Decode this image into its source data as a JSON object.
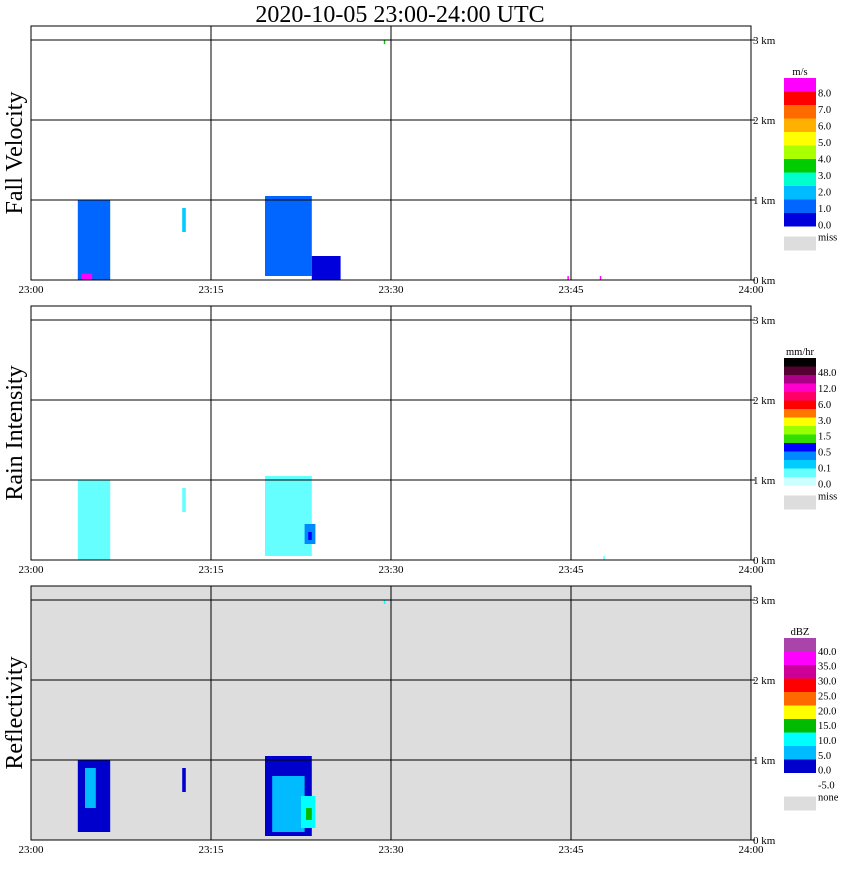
{
  "title": "2020-10-05   23:00-24:00 UTC",
  "colors": {
    "miss": "#dddddd",
    "axes": "#000000",
    "background": "#ffffff"
  },
  "time_ticks": [
    "23:00",
    "23:15",
    "23:30",
    "23:45",
    "24:00"
  ],
  "height_ticks": [
    "0 km",
    "1 km",
    "2 km",
    "3 km"
  ],
  "chart_data": [
    {
      "type": "heatmap",
      "title": "Fall Velocity",
      "x_range": [
        "23:00",
        "24:00"
      ],
      "y_range_km": [
        0,
        3.0
      ],
      "grid": true,
      "background": "#ffffff",
      "colorbar": {
        "unit": "m/s",
        "levels": [
          "8.0",
          "7.0",
          "6.0",
          "5.0",
          "4.0",
          "3.0",
          "2.0",
          "1.0",
          "0.0"
        ],
        "colors": [
          "#ff00ff",
          "#ff0000",
          "#ff6a00",
          "#ffb000",
          "#ffff00",
          "#aaff00",
          "#00cc00",
          "#00ffcc",
          "#00bbff",
          "#0066ff",
          "#0000dd"
        ],
        "miss_label": "miss"
      },
      "echoes": [
        {
          "t0": 23.065,
          "t1": 23.11,
          "h0": 0.0,
          "h1": 1.0,
          "c": "#0066ff"
        },
        {
          "t0": 23.07,
          "t1": 23.085,
          "h0": 0.0,
          "h1": 0.08,
          "c": "#ff00ff"
        },
        {
          "t0": 23.21,
          "t1": 23.215,
          "h0": 0.6,
          "h1": 0.9,
          "c": "#00ccff"
        },
        {
          "t0": 23.325,
          "t1": 23.39,
          "h0": 0.05,
          "h1": 1.05,
          "c": "#0066ff"
        },
        {
          "t0": 23.39,
          "t1": 23.43,
          "h0": 0.0,
          "h1": 0.3,
          "c": "#0000dd"
        },
        {
          "t0": 23.745,
          "t1": 23.747,
          "h0": 0.0,
          "h1": 0.05,
          "c": "#ff00ff"
        },
        {
          "t0": 23.79,
          "t1": 23.792,
          "h0": 0.0,
          "h1": 0.05,
          "c": "#ff00ff"
        },
        {
          "t0": 23.49,
          "t1": 23.492,
          "h0": 2.95,
          "h1": 3.0,
          "c": "#00cc00"
        }
      ]
    },
    {
      "type": "heatmap",
      "title": "Rain Intensity",
      "x_range": [
        "23:00",
        "24:00"
      ],
      "y_range_km": [
        0,
        3.0
      ],
      "grid": true,
      "background": "#ffffff",
      "colorbar": {
        "unit": "mm/hr",
        "levels": [
          "48.0",
          "12.0",
          "6.0",
          "3.0",
          "1.5",
          "0.5",
          "0.1",
          "0.0"
        ],
        "colors": [
          "#000000",
          "#550033",
          "#aa0088",
          "#ff00cc",
          "#ff0066",
          "#ff0000",
          "#ff7700",
          "#ffff00",
          "#99ff00",
          "#33dd00",
          "#0000ff",
          "#0088ff",
          "#00ccff",
          "#66ffff",
          "#ccffff"
        ],
        "miss_label": "miss"
      },
      "echoes": [
        {
          "t0": 23.065,
          "t1": 23.11,
          "h0": 0.0,
          "h1": 1.0,
          "c": "#66ffff"
        },
        {
          "t0": 23.21,
          "t1": 23.215,
          "h0": 0.6,
          "h1": 0.9,
          "c": "#66ffff"
        },
        {
          "t0": 23.325,
          "t1": 23.39,
          "h0": 0.05,
          "h1": 1.05,
          "c": "#66ffff"
        },
        {
          "t0": 23.38,
          "t1": 23.395,
          "h0": 0.2,
          "h1": 0.45,
          "c": "#0088ff"
        },
        {
          "t0": 23.385,
          "t1": 23.39,
          "h0": 0.25,
          "h1": 0.35,
          "c": "#0000ff"
        },
        {
          "t0": 23.795,
          "t1": 23.797,
          "h0": 0.0,
          "h1": 0.05,
          "c": "#66ffff"
        }
      ]
    },
    {
      "type": "heatmap",
      "title": "Reflectivity",
      "x_range": [
        "23:00",
        "24:00"
      ],
      "y_range_km": [
        0,
        3.0
      ],
      "grid": true,
      "background": "#dddddd",
      "colorbar": {
        "unit": "dBZ",
        "levels": [
          "40.0",
          "35.0",
          "30.0",
          "25.0",
          "20.0",
          "15.0",
          "10.0",
          "5.0",
          "0.0",
          "-5.0"
        ],
        "colors": [
          "#aa44aa",
          "#ff00ff",
          "#cc0099",
          "#ff0000",
          "#ff6a00",
          "#ffff00",
          "#00bb00",
          "#00ffff",
          "#00bbff",
          "#0000cc",
          "#ffffff"
        ],
        "miss_label": "none"
      },
      "echoes": [
        {
          "t0": 23.065,
          "t1": 23.11,
          "h0": 0.1,
          "h1": 1.0,
          "c": "#0000cc"
        },
        {
          "t0": 23.075,
          "t1": 23.09,
          "h0": 0.4,
          "h1": 0.9,
          "c": "#00bbff"
        },
        {
          "t0": 23.21,
          "t1": 23.215,
          "h0": 0.6,
          "h1": 0.9,
          "c": "#0000cc"
        },
        {
          "t0": 23.325,
          "t1": 23.39,
          "h0": 0.05,
          "h1": 1.05,
          "c": "#0000cc"
        },
        {
          "t0": 23.335,
          "t1": 23.38,
          "h0": 0.1,
          "h1": 0.8,
          "c": "#00bbff"
        },
        {
          "t0": 23.375,
          "t1": 23.395,
          "h0": 0.15,
          "h1": 0.55,
          "c": "#00ffff"
        },
        {
          "t0": 23.382,
          "t1": 23.39,
          "h0": 0.25,
          "h1": 0.4,
          "c": "#00bb00"
        },
        {
          "t0": 23.49,
          "t1": 23.492,
          "h0": 2.95,
          "h1": 3.0,
          "c": "#00ffff"
        }
      ]
    }
  ]
}
